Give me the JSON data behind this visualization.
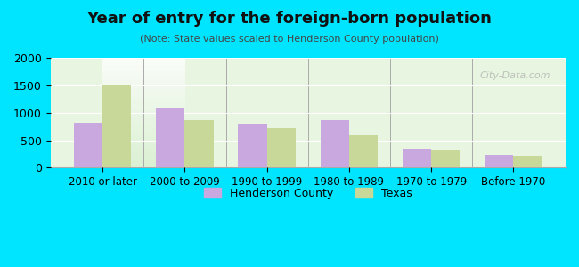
{
  "title": "Year of entry for the foreign-born population",
  "subtitle": "(Note: State values scaled to Henderson County population)",
  "categories": [
    "2010 or later",
    "2000 to 2009",
    "1990 to 1999",
    "1980 to 1989",
    "1970 to 1979",
    "Before 1970"
  ],
  "henderson": [
    825,
    1100,
    800,
    860,
    350,
    230
  ],
  "texas": [
    1500,
    860,
    715,
    590,
    330,
    220
  ],
  "henderson_color": "#c9a8e0",
  "texas_color": "#c8d898",
  "background_color": "#00e5ff",
  "plot_bg_color_top": "#f0fff0",
  "plot_bg_color_bottom": "#e8ffe8",
  "ylim": [
    0,
    2000
  ],
  "yticks": [
    0,
    500,
    1000,
    1500,
    2000
  ],
  "watermark": "City-Data.com",
  "legend_labels": [
    "Henderson County",
    "Texas"
  ]
}
